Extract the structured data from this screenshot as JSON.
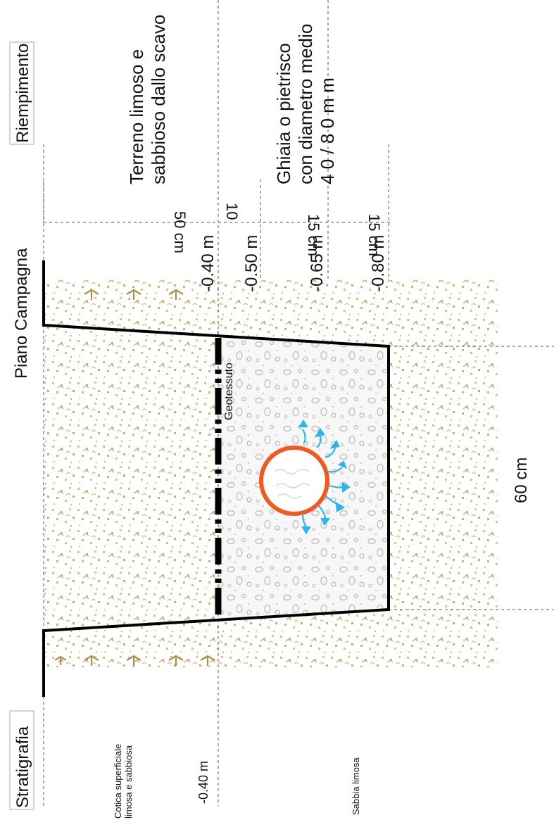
{
  "header": {
    "riempimento": "Riempimento",
    "stratigrafia": "Stratigrafia",
    "piano_campagna": "Piano Campagna"
  },
  "fill_layers": {
    "top_fill": "Terreno limoso e sabbioso dallo scavo",
    "top_fill_line1": "Terreno    limoso    e",
    "top_fill_line2": "sabbioso dallo scavo",
    "gravel_line1": "Ghiaia    o    pietrisco",
    "gravel_line2": "con diametro medio",
    "gravel_line3": "4 0     /     8 0     m m"
  },
  "thicknesses": {
    "t1": "50 cm",
    "t2": "10",
    "t3": "15 cm",
    "t4": "15 cm"
  },
  "depths": {
    "d1": "-0.40 m",
    "d2": "-0.50 m",
    "d3": "-0.65 m",
    "d4": "-0.80 m"
  },
  "labels": {
    "geotessuto": "Geotessuto",
    "width": "60 cm"
  },
  "stratigraphy": {
    "layer1_line1": "Cotica superficiale",
    "layer1_line2": "limosa e sabbiosa",
    "layer1_depth": "-0.40 m",
    "layer2": "Sabbia limosa"
  },
  "colors": {
    "soil_dot": "#c9b67a",
    "gravel_dot": "#b8b8b8",
    "pipe": "#f05a1e",
    "water": "#29b6e8",
    "trench_line": "#000000"
  }
}
